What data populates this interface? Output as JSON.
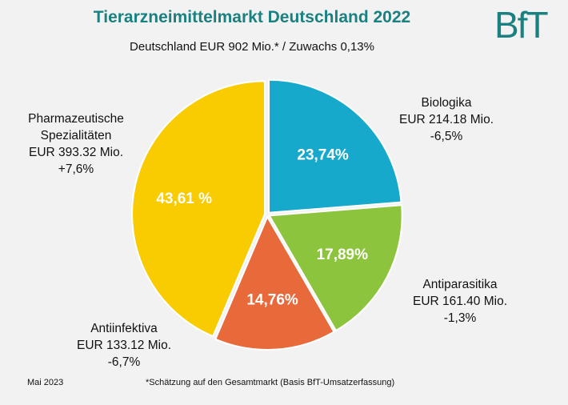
{
  "header": {
    "title": "Tierarzneimittelmarkt Deutschland 2022",
    "subtitle": "Deutschland EUR 902 Mio.* / Zuwachs 0,13%",
    "logo_text": "BfT"
  },
  "footer": {
    "date": "Mai 2023",
    "note": "*Schätzung auf den Gesamtmarkt (Basis BfT-Umsatzerfassung)"
  },
  "chart_data": {
    "type": "pie",
    "title": "Tierarzneimittelmarkt Deutschland 2022",
    "start": "12 o'clock, clockwise",
    "slices": [
      {
        "name": "Biologika",
        "value": 23.74,
        "pct_label": "23,74%",
        "amount": "EUR 214.18 Mio.",
        "change": "-6,5%",
        "color": "#17a9cc"
      },
      {
        "name": "Antiparasitika",
        "value": 17.89,
        "pct_label": "17,89%",
        "amount": "EUR 161.40 Mio.",
        "change": "-1,3%",
        "color": "#8dc43d"
      },
      {
        "name": "Antiinfektiva",
        "value": 14.76,
        "pct_label": "14,76%",
        "amount": "EUR 133.12 Mio.",
        "change": "-6,7%",
        "color": "#e8693a"
      },
      {
        "name": "Pharmazeutische Spezialitäten",
        "value": 43.61,
        "pct_label": "43,61 %",
        "amount": "EUR 393.32 Mio.",
        "change": "+7,6%",
        "color": "#f8cc00"
      }
    ]
  }
}
